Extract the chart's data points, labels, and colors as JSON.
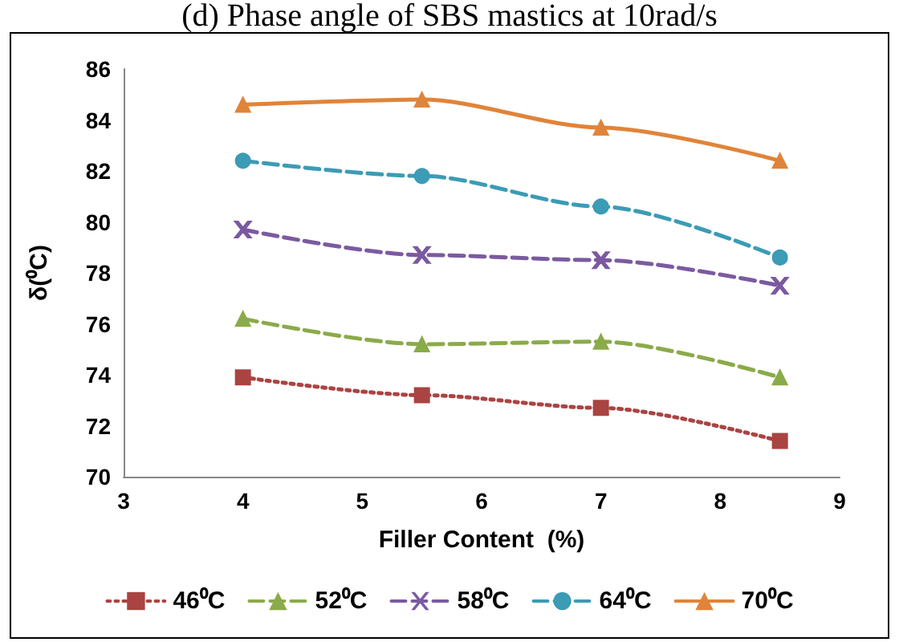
{
  "chart_data": {
    "type": "line",
    "title": "(d) Phase angle of SBS mastics at 10rad/s",
    "xlabel": "Filler Content  (%)",
    "ylabel": "δ(⁰C)",
    "x": [
      4,
      5.5,
      7,
      8.5
    ],
    "series": [
      {
        "name": "46⁰C",
        "color": "#a94442",
        "values": [
          73.9,
          73.2,
          72.7,
          71.4
        ],
        "marker": "square",
        "line_style": "dotted"
      },
      {
        "name": "52⁰C",
        "color": "#8aab4a",
        "values": [
          76.2,
          75.2,
          75.3,
          73.9
        ],
        "marker": "triangle",
        "line_style": "dashed"
      },
      {
        "name": "58⁰C",
        "color": "#7b5aa0",
        "values": [
          79.7,
          78.7,
          78.5,
          77.5
        ],
        "marker": "cross",
        "line_style": "dashed"
      },
      {
        "name": "64⁰C",
        "color": "#3c9bb5",
        "values": [
          82.4,
          81.8,
          80.6,
          78.6
        ],
        "marker": "circle",
        "line_style": "dashed"
      },
      {
        "name": "70⁰C",
        "color": "#e0843a",
        "values": [
          84.6,
          84.8,
          83.7,
          82.4
        ],
        "marker": "triangle",
        "line_style": "solid"
      }
    ],
    "xlim": [
      3,
      9
    ],
    "xticks": [
      3,
      4,
      5,
      6,
      7,
      8,
      9
    ],
    "ylim": [
      70,
      86
    ],
    "yticks": [
      70,
      72,
      74,
      76,
      78,
      80,
      82,
      84,
      86
    ],
    "grid": false,
    "legend": "bottom"
  }
}
